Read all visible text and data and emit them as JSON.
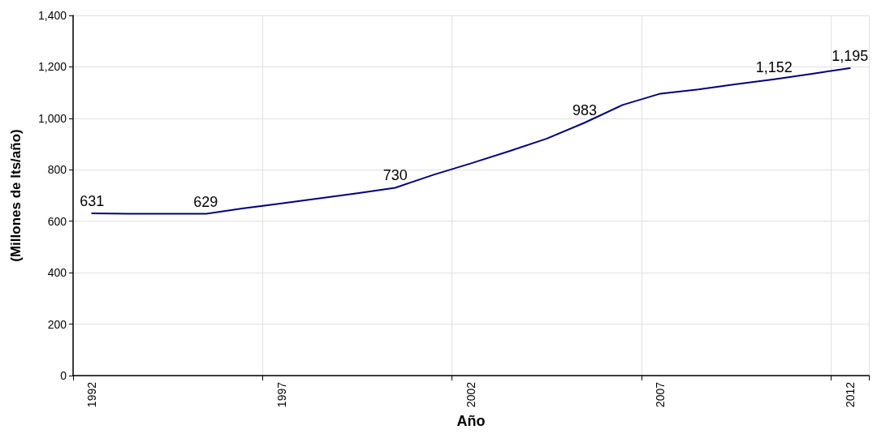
{
  "chart_data": {
    "type": "line",
    "xlabel": "Año",
    "ylabel": "(Millones de lts/año)",
    "categories": [
      "1992",
      null,
      null,
      null,
      null,
      "1997",
      null,
      null,
      null,
      null,
      "2002",
      null,
      null,
      null,
      null,
      "2007",
      null,
      null,
      null,
      null,
      "2012"
    ],
    "series": [
      {
        "color": "#000080",
        "values": [
          631,
          629,
          629,
          629,
          650,
          669,
          689,
          709,
          730,
          780,
          825,
          872,
          921,
          983,
          1052,
          1096,
          1112,
          1133,
          1152,
          1173,
          1195
        ],
        "value_labels": [
          "631",
          null,
          null,
          "629",
          null,
          null,
          null,
          null,
          "730",
          null,
          null,
          null,
          null,
          "983",
          null,
          null,
          null,
          null,
          "1,152",
          null,
          "1,195"
        ]
      }
    ],
    "ylim": [
      0,
      1400
    ],
    "yticks": [
      0,
      200,
      400,
      600,
      800,
      {
        "value": 1000,
        "label": "1,000"
      },
      {
        "value": 1200,
        "label": "1,200"
      },
      {
        "value": 1400,
        "label": "1,400"
      }
    ],
    "grid": true,
    "marker": "none",
    "line_style": "solid"
  }
}
